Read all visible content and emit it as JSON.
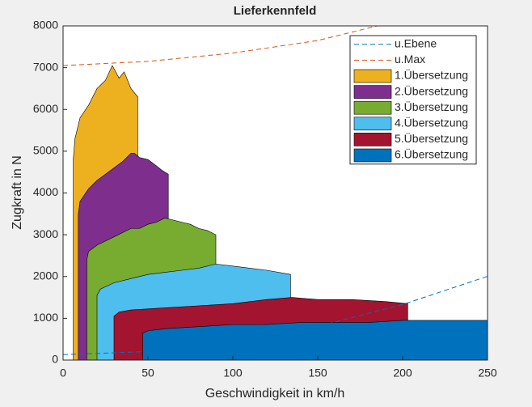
{
  "chart_data": {
    "type": "area",
    "title": "Lieferkennfeld",
    "xlabel": "Geschwindigkeit in km/h",
    "ylabel": "Zugkraft in N",
    "xlim": [
      0,
      250
    ],
    "ylim": [
      0,
      8000
    ],
    "xticks": [
      0,
      50,
      100,
      150,
      200,
      250
    ],
    "yticks": [
      0,
      1000,
      2000,
      3000,
      4000,
      5000,
      6000,
      7000,
      8000
    ],
    "legend": "upper right",
    "series": [
      {
        "name": "u.Ebene",
        "color": "#0072bd",
        "style": "dashed",
        "x": [
          0,
          50,
          100,
          150,
          200,
          250
        ],
        "values": [
          130,
          205,
          430,
          805,
          1330,
          2005
        ]
      },
      {
        "name": "u.Max",
        "color": "#d95319",
        "style": "dashed",
        "x": [
          0,
          50,
          100,
          150,
          185
        ],
        "values": [
          7050,
          7150,
          7350,
          7650,
          8000
        ]
      },
      {
        "name": "1.Übersetzung",
        "color": "#edb120",
        "style": "area",
        "x": [
          6,
          6,
          7,
          10,
          15,
          20,
          25,
          29,
          33,
          36,
          40,
          44,
          44
        ],
        "values": [
          0,
          4800,
          5300,
          5800,
          6100,
          6500,
          6700,
          7050,
          6750,
          6900,
          6500,
          6300,
          0
        ]
      },
      {
        "name": "2.Übersetzung",
        "color": "#7e2f8e",
        "style": "area",
        "x": [
          9,
          9,
          10,
          15,
          20,
          25,
          30,
          35,
          40,
          42,
          45,
          50,
          55,
          58,
          62,
          62
        ],
        "values": [
          0,
          3500,
          3800,
          4100,
          4300,
          4450,
          4600,
          4750,
          4950,
          4950,
          4850,
          4800,
          4650,
          4550,
          4450,
          0
        ]
      },
      {
        "name": "3.Übersetzung",
        "color": "#77ac30",
        "style": "area",
        "x": [
          14,
          14,
          15,
          20,
          30,
          40,
          45,
          50,
          55,
          60,
          70,
          75,
          80,
          85,
          90,
          90
        ],
        "values": [
          0,
          2400,
          2600,
          2750,
          2950,
          3150,
          3150,
          3250,
          3300,
          3400,
          3300,
          3250,
          3150,
          3100,
          3000,
          0
        ]
      },
      {
        "name": "4.Übersetzung",
        "color": "#4dbeee",
        "style": "area",
        "x": [
          20,
          20,
          22,
          30,
          40,
          50,
          60,
          70,
          80,
          90,
          100,
          110,
          120,
          134,
          134
        ],
        "values": [
          0,
          1550,
          1700,
          1850,
          1950,
          2050,
          2100,
          2150,
          2200,
          2300,
          2250,
          2200,
          2150,
          2050,
          0
        ]
      },
      {
        "name": "5.Übersetzung",
        "color": "#a2142f",
        "style": "area",
        "x": [
          30,
          30,
          33,
          40,
          60,
          80,
          100,
          120,
          135,
          150,
          170,
          190,
          203,
          203
        ],
        "values": [
          0,
          1050,
          1150,
          1200,
          1250,
          1300,
          1350,
          1450,
          1500,
          1450,
          1450,
          1400,
          1350,
          0
        ]
      },
      {
        "name": "6.Übersetzung",
        "color": "#0072bd",
        "style": "area",
        "x": [
          47,
          47,
          50,
          60,
          80,
          100,
          120,
          140,
          160,
          180,
          200,
          220,
          250,
          250
        ],
        "values": [
          0,
          650,
          700,
          750,
          800,
          850,
          850,
          900,
          900,
          900,
          950,
          950,
          950,
          0
        ]
      }
    ]
  }
}
